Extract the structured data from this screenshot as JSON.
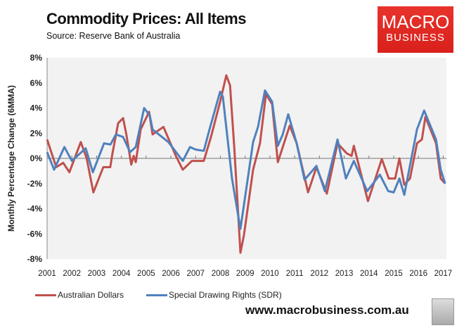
{
  "chart_data": {
    "type": "line",
    "title": "Commodity Prices: All Items",
    "subtitle": "Source: Reserve Bank of Australia",
    "ylabel": "Monthly Percentage Change (6MMA)",
    "xlabel": "",
    "ylim": [
      -8,
      8
    ],
    "xlim": [
      2001,
      2017.1
    ],
    "yticks": [
      "-8%",
      "-6%",
      "-4%",
      "-2%",
      "0%",
      "2%",
      "4%",
      "6%",
      "8%"
    ],
    "xticks": [
      "2001",
      "2002",
      "2003",
      "2004",
      "2005",
      "2006",
      "2007",
      "2008",
      "2009",
      "2010",
      "2011",
      "2012",
      "2013",
      "2014",
      "2015",
      "2016",
      "2017"
    ],
    "grid": false,
    "legend": "bottom",
    "series": [
      {
        "name": "Australian Dollars",
        "color": "#c0504d",
        "x": [
          2001.0,
          2001.37,
          2001.65,
          2001.9,
          2002.36,
          2002.6,
          2002.87,
          2003.27,
          2003.55,
          2003.64,
          2003.87,
          2004.07,
          2004.2,
          2004.4,
          2004.5,
          2004.58,
          2004.78,
          2005.12,
          2005.26,
          2005.7,
          2006.2,
          2006.48,
          2006.85,
          2007.33,
          2007.62,
          2007.99,
          2008.24,
          2008.39,
          2008.56,
          2008.81,
          2008.95,
          2009.32,
          2009.6,
          2009.84,
          2010.09,
          2010.32,
          2010.8,
          2011.08,
          2011.54,
          2011.88,
          2012.3,
          2012.73,
          2013.1,
          2013.3,
          2013.39,
          2013.96,
          2014.52,
          2014.8,
          2015.06,
          2015.23,
          2015.43,
          2015.66,
          2015.94,
          2016.14,
          2016.28,
          2016.71,
          2016.9,
          2017.08
        ],
        "y": [
          1.5,
          -0.7,
          -0.35,
          -1.1,
          1.3,
          0,
          -2.7,
          -0.7,
          -0.7,
          0.4,
          2.8,
          3.2,
          1.9,
          -0.5,
          0.2,
          -0.3,
          2.3,
          3.7,
          1.9,
          2.5,
          0.2,
          -0.9,
          -0.2,
          -0.2,
          1.7,
          4.5,
          6.6,
          5.8,
          0.9,
          -7.5,
          -6.1,
          -0.9,
          1.2,
          5.1,
          4.3,
          -0.3,
          2.6,
          1.2,
          -2.7,
          -0.7,
          -2.8,
          1.2,
          0.4,
          0.2,
          1.0,
          -3.4,
          -0.05,
          -1.6,
          -1.6,
          0,
          -2.1,
          -1.6,
          1.2,
          1.5,
          3.3,
          1.2,
          -1.6,
          -2.0
        ]
      },
      {
        "name": "Special Drawing Rights (SDR)",
        "color": "#4f81bd",
        "x": [
          2001.0,
          2001.28,
          2001.7,
          2002.0,
          2002.56,
          2002.85,
          2003.3,
          2003.56,
          2003.78,
          2004.07,
          2004.35,
          2004.58,
          2004.92,
          2005.15,
          2005.26,
          2005.9,
          2006.48,
          2006.77,
          2007.0,
          2007.33,
          2007.56,
          2007.99,
          2008.1,
          2008.47,
          2008.81,
          2008.95,
          2009.32,
          2009.52,
          2009.8,
          2010.09,
          2010.32,
          2010.52,
          2010.74,
          2011.08,
          2011.4,
          2011.88,
          2012.22,
          2012.73,
          2013.07,
          2013.39,
          2013.93,
          2014.44,
          2014.78,
          2015.0,
          2015.23,
          2015.43,
          2015.94,
          2016.23,
          2016.71,
          2016.9,
          2017.08
        ],
        "y": [
          0.5,
          -0.9,
          0.9,
          -0.2,
          0.8,
          -1.1,
          1.2,
          1.1,
          1.9,
          1.7,
          0.5,
          0.9,
          4.0,
          3.4,
          2.3,
          1.3,
          -0.2,
          0.9,
          0.7,
          0.6,
          2.3,
          5.3,
          4.9,
          -1.6,
          -5.6,
          -3.7,
          1.3,
          2.5,
          5.4,
          4.5,
          1.0,
          1.9,
          3.5,
          1.2,
          -1.7,
          -0.6,
          -2.6,
          1.5,
          -1.6,
          -0.2,
          -2.6,
          -1.3,
          -2.6,
          -2.7,
          -1.6,
          -2.9,
          2.3,
          3.8,
          1.5,
          -0.9,
          -2.0
        ]
      }
    ]
  },
  "brand": {
    "line1": "MACRO",
    "line2": "BUSINESS",
    "url": "www.macrobusiness.com.au"
  }
}
